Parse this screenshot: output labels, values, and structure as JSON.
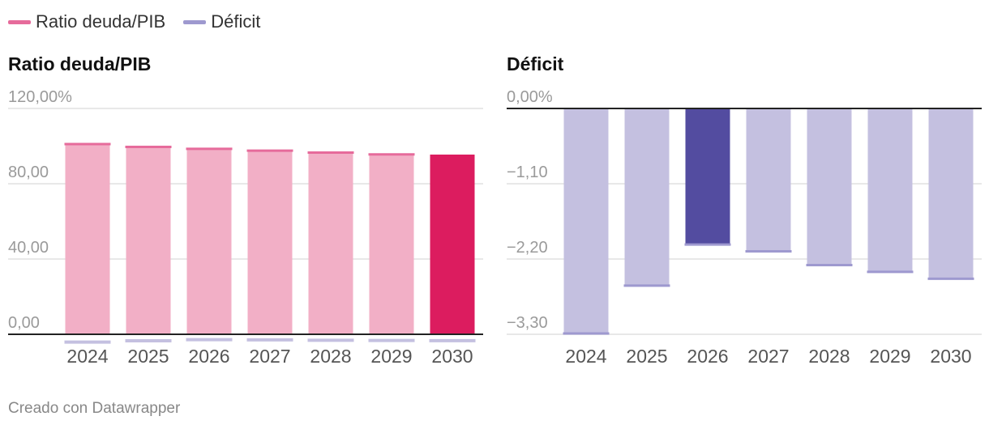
{
  "legend": {
    "items": [
      {
        "label": "Ratio deuda/PIB",
        "color": "#e66b9b"
      },
      {
        "label": "Déficit",
        "color": "#9e99cf"
      }
    ]
  },
  "footer": {
    "credit": "Creado con Datawrapper"
  },
  "colors": {
    "debt_bar": "#f2afc6",
    "debt_highlight": "#dc1c5f",
    "debt_line": "#e66b9b",
    "deficit_bar": "#c4c0e0",
    "deficit_highlight": "#534ca0",
    "deficit_line": "#9e99cf",
    "grid": "#e0e0e0",
    "tick_text": "#9a9a9a"
  },
  "chart_data": [
    {
      "type": "bar",
      "title": "Ratio deuda/PIB",
      "categories": [
        "2024",
        "2025",
        "2026",
        "2027",
        "2028",
        "2029",
        "2030"
      ],
      "values": [
        101.5,
        100.0,
        99.0,
        98.0,
        97.0,
        96.0,
        95.5
      ],
      "overlay_series": {
        "name": "Déficit",
        "values": [
          -3.3,
          -2.6,
          -2.0,
          -2.1,
          -2.3,
          -2.4,
          -2.5
        ]
      },
      "ylim": [
        0,
        120
      ],
      "yticks": [
        {
          "value": 120,
          "label": "120,00%"
        },
        {
          "value": 80,
          "label": "80,00"
        },
        {
          "value": 40,
          "label": "40,00"
        },
        {
          "value": 0,
          "label": "0,00"
        }
      ],
      "highlight_index": 6,
      "xlabel": "",
      "ylabel": "",
      "grid": true
    },
    {
      "type": "bar",
      "title": "Déficit",
      "categories": [
        "2024",
        "2025",
        "2026",
        "2027",
        "2028",
        "2029",
        "2030"
      ],
      "values": [
        -3.3,
        -2.6,
        -2.0,
        -2.1,
        -2.3,
        -2.4,
        -2.5
      ],
      "ylim": [
        -3.3,
        0
      ],
      "yticks": [
        {
          "value": 0,
          "label": "0,00%"
        },
        {
          "value": -1.1,
          "label": "−1,10"
        },
        {
          "value": -2.2,
          "label": "−2,20"
        },
        {
          "value": -3.3,
          "label": "−3,30"
        }
      ],
      "highlight_index": 2,
      "xlabel": "",
      "ylabel": "",
      "grid": true
    }
  ]
}
